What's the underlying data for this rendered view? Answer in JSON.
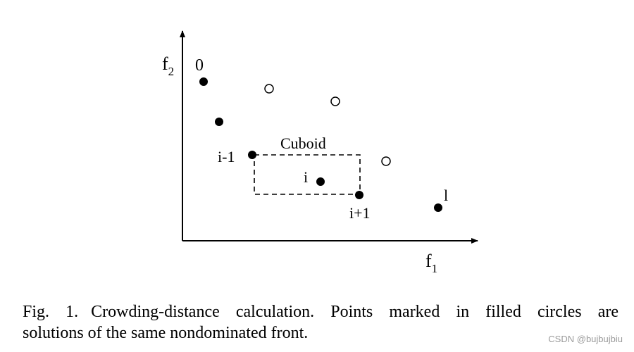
{
  "figure": {
    "axes": {
      "y_label": "f",
      "y_label_sub": "2",
      "x_label": "f",
      "x_label_sub": "1"
    },
    "point_labels": {
      "zero": "0",
      "i_minus_1": "i-1",
      "i": "i",
      "i_plus_1": "i+1",
      "last": "l"
    },
    "cuboid_label": "Cuboid",
    "filled_points_count": 6,
    "open_points_count": 3
  },
  "caption": {
    "fig_number": "Fig. 1.",
    "line1": "Crowding-distance calculation. Points marked in filled circles are",
    "line2": "solutions of the same nondominated front."
  },
  "watermark": "CSDN @bujbujbiu"
}
